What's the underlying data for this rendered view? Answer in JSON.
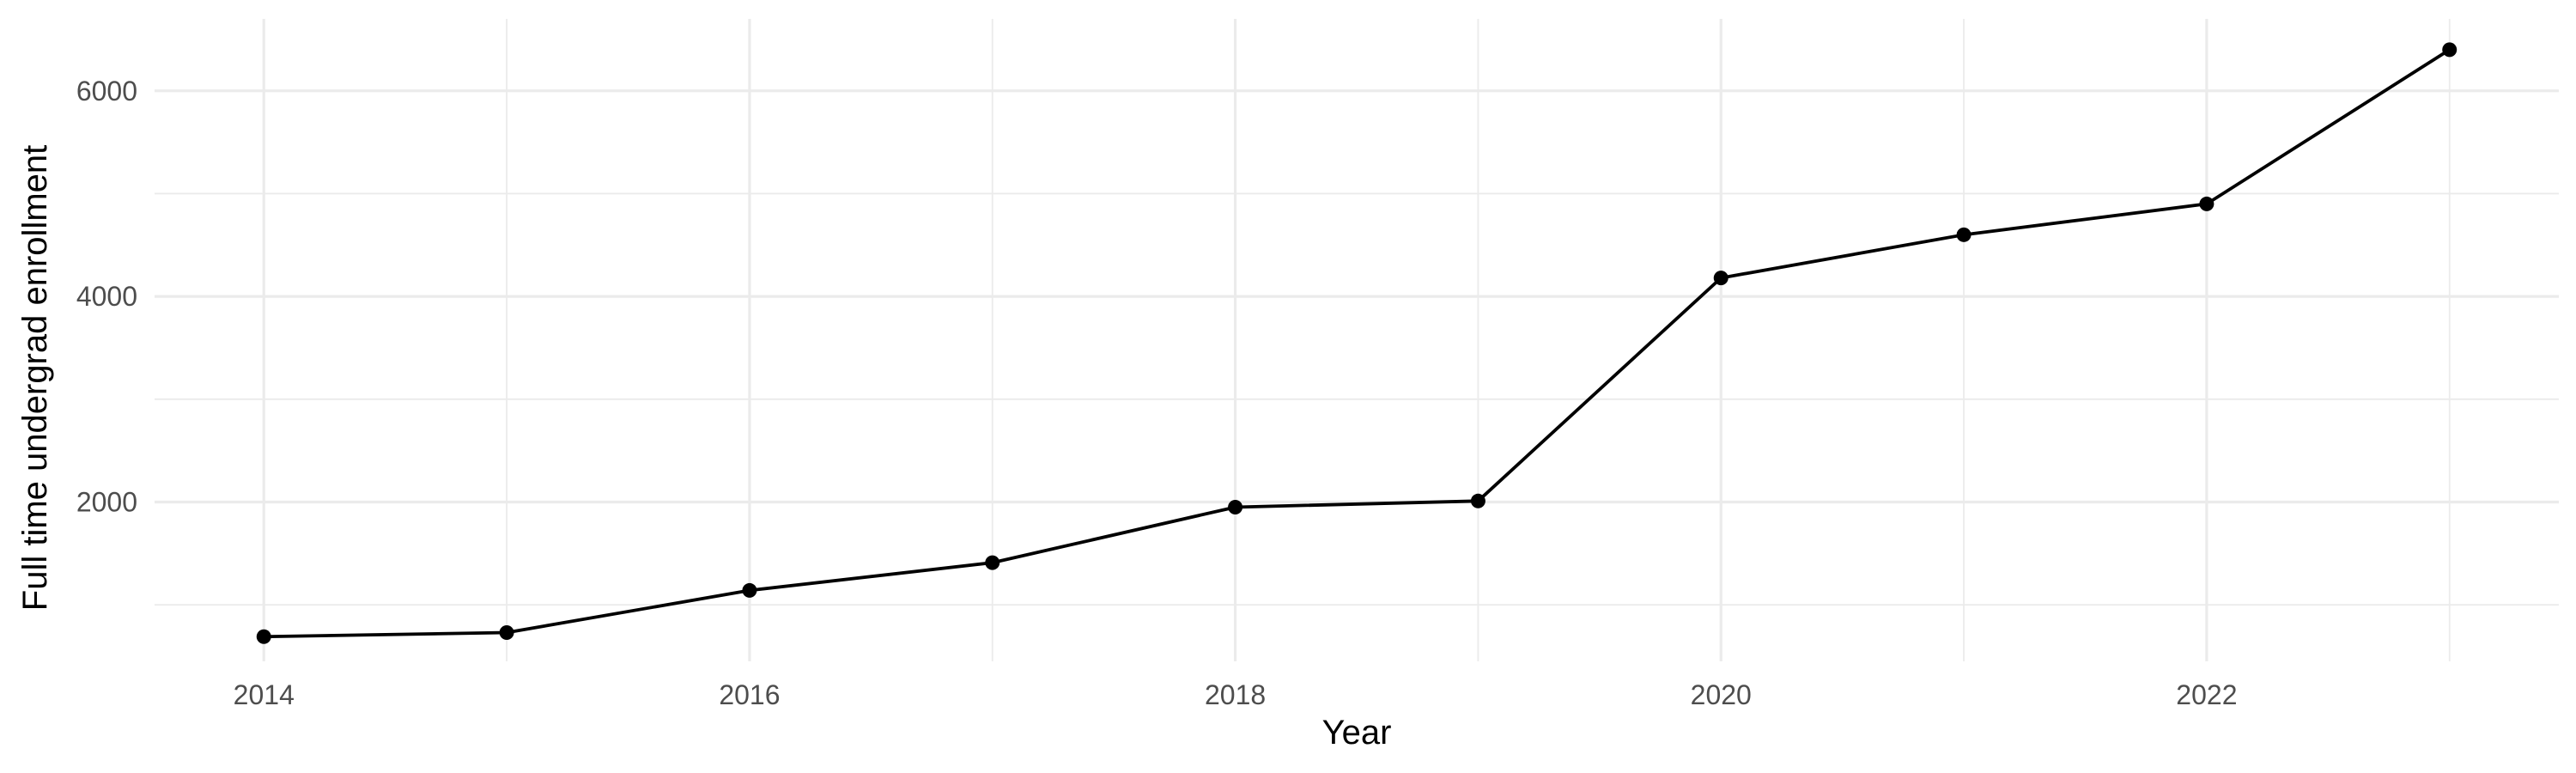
{
  "chart_data": {
    "type": "line",
    "title": "",
    "xlabel": "Year",
    "ylabel": "Full time undergrad enrollment",
    "x": [
      2014,
      2015,
      2016,
      2017,
      2018,
      2019,
      2020,
      2021,
      2022,
      2023
    ],
    "series": [
      {
        "values": [
          690,
          730,
          1140,
          1410,
          1950,
          2010,
          4180,
          4600,
          4900,
          6400
        ]
      }
    ],
    "x_ticks": [
      2014,
      2016,
      2018,
      2020,
      2022
    ],
    "y_ticks": [
      2000,
      4000,
      6000
    ],
    "xlim": [
      2013.55,
      2023.45
    ],
    "ylim": [
      450,
      6700
    ],
    "grid": true,
    "legend": "none",
    "colors": {
      "line": "#000000",
      "point": "#000000",
      "grid": "#ebebeb",
      "tick_text": "#4d4d4d",
      "axis_title": "#000000"
    }
  }
}
